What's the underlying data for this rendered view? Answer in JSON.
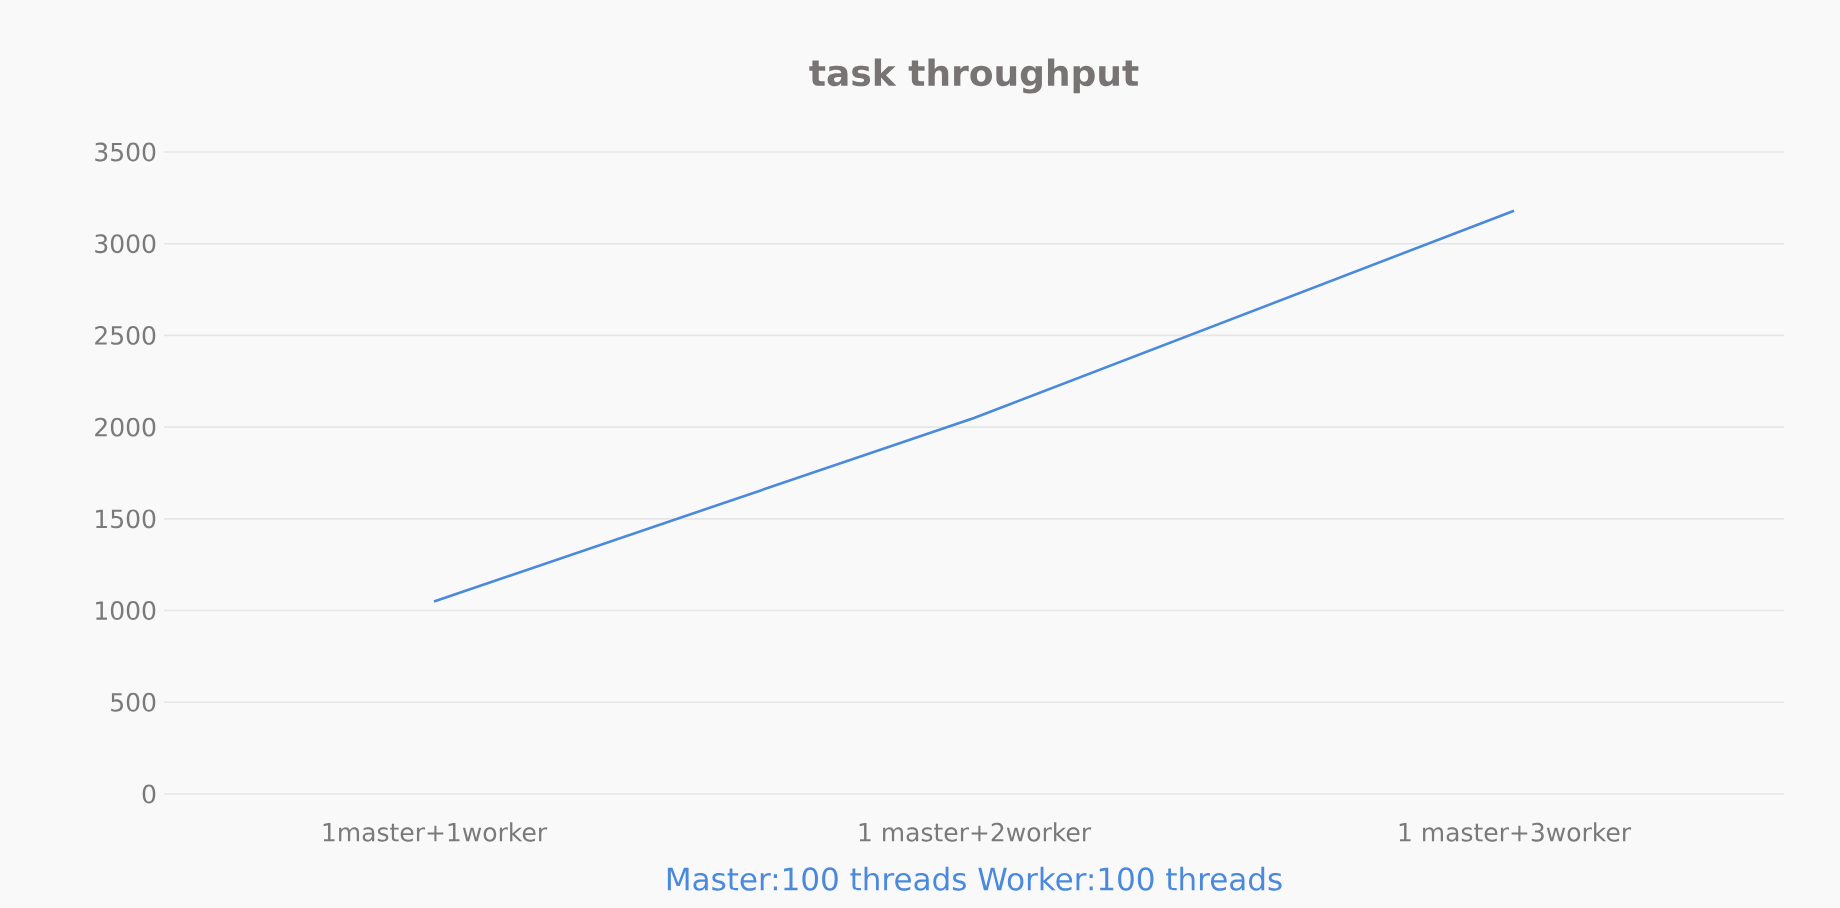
{
  "chart_data": {
    "type": "line",
    "title": "task throughput",
    "categories": [
      "1master+1worker",
      "1 master+2worker",
      "1 master+3worker"
    ],
    "series": [
      {
        "name": "Master:100 threads Worker:100 threads",
        "color": "#4a89dc",
        "values": [
          1050,
          2050,
          3180
        ]
      }
    ],
    "ylim": [
      0,
      3500
    ],
    "yticks": [
      0,
      500,
      1000,
      1500,
      2000,
      2500,
      3000,
      3500
    ],
    "grid": "y",
    "legend": "bottom",
    "marker": "none",
    "line_style": "solid"
  }
}
